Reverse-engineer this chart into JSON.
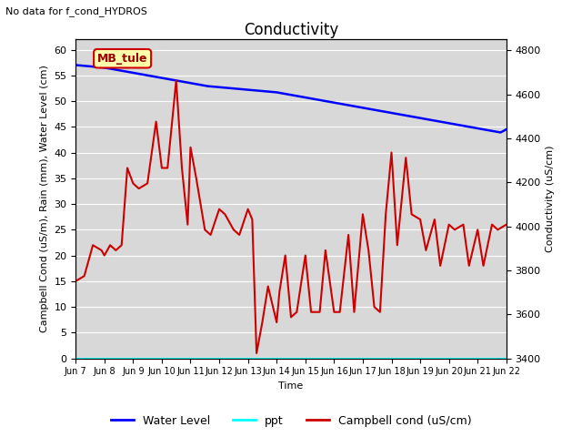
{
  "title": "Conductivity",
  "top_left_text": "No data for f_cond_HYDROS",
  "xlabel": "Time",
  "ylabel_left": "Campbell Cond (uS/m), Rain (mm), Water Level (cm)",
  "ylabel_right": "Conductivity (uS/cm)",
  "xlim": [
    0,
    15
  ],
  "ylim_left": [
    0,
    62
  ],
  "ylim_right": [
    3400,
    4850
  ],
  "yticks_left": [
    0,
    5,
    10,
    15,
    20,
    25,
    30,
    35,
    40,
    45,
    50,
    55,
    60
  ],
  "yticks_right": [
    3400,
    3600,
    3800,
    4000,
    4200,
    4400,
    4600,
    4800
  ],
  "xtick_labels": [
    "Jun 7",
    "Jun 8",
    "Jun 9",
    "Jun 10",
    "Jun 11",
    "Jun 12",
    "Jun 13",
    "Jun 14",
    "Jun 15",
    "Jun 16",
    "Jun 17",
    "Jun 18",
    "Jun 19",
    "Jun 20",
    "Jun 21",
    "Jun 22"
  ],
  "annotation_box": {
    "text": "MB_tule",
    "facecolor": "#ffffaa",
    "edgecolor": "#cc0000"
  },
  "water_level": {
    "x": [
      0,
      0.2,
      0.4,
      0.6,
      0.8,
      1.0,
      1.2,
      1.4,
      1.6,
      1.8,
      2.0,
      2.2,
      2.4,
      2.6,
      2.8,
      3.0,
      3.2,
      3.4,
      3.6,
      3.8,
      4.0,
      4.2,
      4.4,
      4.6,
      4.8,
      5.0,
      5.2,
      5.4,
      5.6,
      5.8,
      6.0,
      6.2,
      6.4,
      6.6,
      6.8,
      7.0,
      7.2,
      7.4,
      7.6,
      7.8,
      8.0,
      8.2,
      8.4,
      8.6,
      8.8,
      9.0,
      9.2,
      9.4,
      9.6,
      9.8,
      10.0,
      10.2,
      10.4,
      10.6,
      10.8,
      11.0,
      11.2,
      11.4,
      11.6,
      11.8,
      12.0,
      12.2,
      12.4,
      12.6,
      12.8,
      13.0,
      13.2,
      13.4,
      13.6,
      13.8,
      14.0,
      14.2,
      14.4,
      14.6,
      14.8,
      15.0
    ],
    "y": [
      57,
      56.9,
      56.8,
      56.7,
      56.6,
      56.5,
      56.3,
      56.1,
      55.9,
      55.7,
      55.5,
      55.3,
      55.1,
      54.9,
      54.7,
      54.5,
      54.3,
      54.1,
      53.9,
      53.7,
      53.5,
      53.3,
      53.1,
      52.9,
      52.8,
      52.7,
      52.6,
      52.5,
      52.4,
      52.3,
      52.2,
      52.1,
      52.0,
      51.9,
      51.8,
      51.7,
      51.5,
      51.3,
      51.1,
      50.9,
      50.7,
      50.5,
      50.3,
      50.1,
      49.9,
      49.7,
      49.5,
      49.3,
      49.1,
      48.9,
      48.7,
      48.5,
      48.3,
      48.1,
      47.9,
      47.7,
      47.5,
      47.3,
      47.1,
      46.9,
      46.7,
      46.5,
      46.3,
      46.1,
      45.9,
      45.7,
      45.5,
      45.3,
      45.1,
      44.9,
      44.7,
      44.5,
      44.3,
      44.1,
      43.9,
      44.5
    ],
    "color": "#0000ff",
    "linewidth": 1.8
  },
  "ppt": {
    "x": [
      0,
      15
    ],
    "y": [
      0,
      0
    ],
    "color": "#00ffff",
    "linewidth": 1.5
  },
  "campbell": {
    "x": [
      0,
      0.3,
      0.6,
      0.9,
      1.0,
      1.2,
      1.4,
      1.6,
      1.8,
      2.0,
      2.2,
      2.5,
      2.8,
      3.0,
      3.2,
      3.5,
      3.7,
      3.9,
      4.0,
      4.2,
      4.5,
      4.7,
      5.0,
      5.2,
      5.5,
      5.7,
      6.0,
      6.15,
      6.3,
      6.5,
      6.7,
      7.0,
      7.1,
      7.3,
      7.5,
      7.7,
      8.0,
      8.2,
      8.5,
      8.7,
      9.0,
      9.2,
      9.5,
      9.7,
      10.0,
      10.2,
      10.4,
      10.6,
      10.8,
      11.0,
      11.2,
      11.5,
      11.7,
      12.0,
      12.2,
      12.5,
      12.7,
      13.0,
      13.2,
      13.5,
      13.7,
      14.0,
      14.2,
      14.5,
      14.7,
      15.0
    ],
    "y": [
      15,
      16,
      22,
      21,
      20,
      22,
      21,
      22,
      37,
      34,
      33,
      34,
      46,
      37,
      37,
      54,
      37,
      26,
      41,
      35,
      25,
      24,
      29,
      28,
      25,
      24,
      29,
      27,
      1,
      7,
      14,
      7,
      13,
      20,
      8,
      9,
      20,
      9,
      9,
      21,
      9,
      9,
      24,
      9,
      28,
      21,
      10,
      9,
      28,
      40,
      22,
      39,
      28,
      27,
      21,
      27,
      18,
      26,
      25,
      26,
      18,
      25,
      18,
      26,
      25,
      26
    ],
    "color": "#cc0000",
    "linewidth": 1.5
  },
  "legend": {
    "water_level_label": "Water Level",
    "ppt_label": "ppt",
    "campbell_label": "Campbell cond (uS/cm)"
  },
  "grid_color": "#ffffff",
  "bg_axes": "#d8d8d8",
  "title_fontsize": 12,
  "label_fontsize": 8,
  "tick_fontsize": 8
}
